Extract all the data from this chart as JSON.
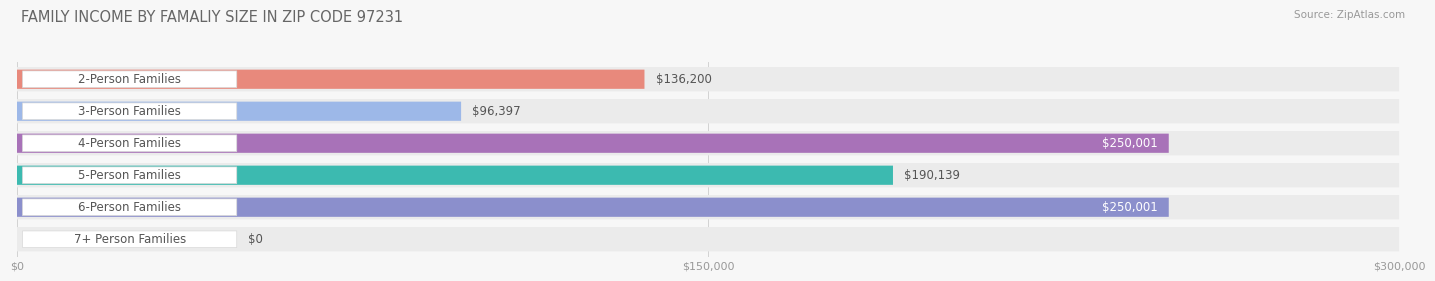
{
  "title": "FAMILY INCOME BY FAMALIY SIZE IN ZIP CODE 97231",
  "source": "Source: ZipAtlas.com",
  "categories": [
    "2-Person Families",
    "3-Person Families",
    "4-Person Families",
    "5-Person Families",
    "6-Person Families",
    "7+ Person Families"
  ],
  "values": [
    136200,
    96397,
    250001,
    190139,
    250001,
    0
  ],
  "bar_colors": [
    "#E8897C",
    "#9DB8E8",
    "#A872B8",
    "#3CBAB0",
    "#8B8FCC",
    "#F0A8C0"
  ],
  "value_labels": [
    "$136,200",
    "$96,397",
    "$250,001",
    "$190,139",
    "$250,001",
    "$0"
  ],
  "value_text_colors": [
    "#555555",
    "#555555",
    "#FFFFFF",
    "#FFFFFF",
    "#FFFFFF",
    "#555555"
  ],
  "xlim": [
    0,
    300000
  ],
  "xticklabels": [
    "$0",
    "$150,000",
    "$300,000"
  ],
  "xtick_vals": [
    0,
    150000,
    300000
  ],
  "background_color": "#F7F7F7",
  "bar_bg_color": "#EBEBEB",
  "label_bg_color": "#FFFFFF",
  "title_fontsize": 10.5,
  "label_fontsize": 8.5,
  "value_fontsize": 8.5,
  "source_fontsize": 7.5
}
